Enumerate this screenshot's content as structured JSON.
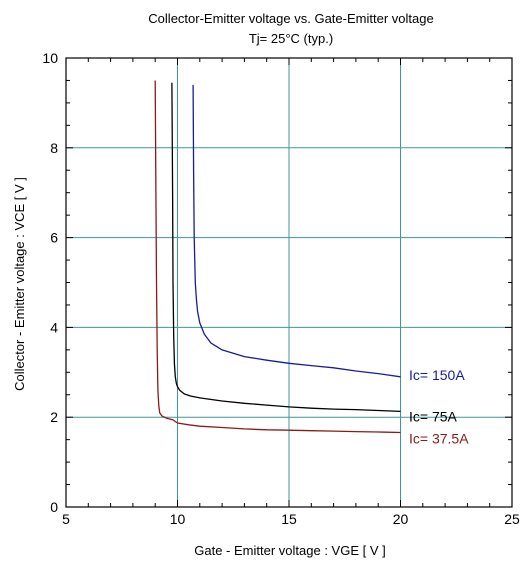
{
  "chart_data": {
    "type": "line",
    "title": "Collector-Emitter voltage  vs. Gate-Emitter voltage",
    "subtitle": "Tj= 25°C  (typ.)",
    "xlabel": "Gate - Emitter voltage  :  VGE  [ V ]",
    "ylabel": "Collector - Emitter voltage  :  VCE  [ V ]",
    "xlim": [
      5,
      25
    ],
    "ylim": [
      0,
      10
    ],
    "xticks": [
      5,
      10,
      15,
      20,
      25
    ],
    "yticks": [
      0,
      2,
      4,
      6,
      8,
      10
    ],
    "grid": true,
    "series": [
      {
        "name": "Ic= 150A",
        "color": "#1a1aa0",
        "x": [
          10.7,
          10.72,
          10.75,
          10.8,
          10.85,
          10.9,
          11.0,
          11.2,
          11.5,
          12.0,
          13.0,
          14.0,
          15.0,
          16.0,
          17.0,
          18.0,
          19.0,
          20.0
        ],
        "y": [
          9.4,
          7.5,
          6.0,
          5.0,
          4.6,
          4.35,
          4.1,
          3.85,
          3.65,
          3.5,
          3.35,
          3.27,
          3.2,
          3.15,
          3.1,
          3.03,
          2.97,
          2.9
        ]
      },
      {
        "name": "Ic= 75A",
        "color": "#000000",
        "x": [
          9.75,
          9.78,
          9.8,
          9.83,
          9.86,
          9.9,
          9.95,
          10.0,
          10.1,
          10.3,
          10.6,
          11.0,
          12.0,
          13.0,
          14.0,
          15.0,
          16.0,
          17.0,
          18.0,
          19.0,
          20.0
        ],
        "y": [
          9.45,
          7.0,
          5.0,
          3.8,
          3.2,
          2.9,
          2.75,
          2.68,
          2.6,
          2.52,
          2.47,
          2.43,
          2.36,
          2.31,
          2.27,
          2.23,
          2.2,
          2.18,
          2.17,
          2.15,
          2.13
        ]
      },
      {
        "name": "Ic= 37.5A",
        "color": "#8b1a1a",
        "x": [
          9.0,
          9.03,
          9.06,
          9.09,
          9.12,
          9.16,
          9.2,
          9.3,
          9.5,
          9.8,
          10.0,
          10.5,
          11.0,
          12.0,
          13.0,
          14.0,
          15.0,
          16.0,
          17.0,
          18.0,
          19.0,
          20.0
        ],
        "y": [
          9.5,
          7.0,
          5.0,
          3.5,
          2.6,
          2.25,
          2.1,
          2.03,
          1.98,
          1.94,
          1.87,
          1.83,
          1.8,
          1.77,
          1.74,
          1.72,
          1.71,
          1.7,
          1.69,
          1.68,
          1.67,
          1.66
        ]
      }
    ]
  }
}
